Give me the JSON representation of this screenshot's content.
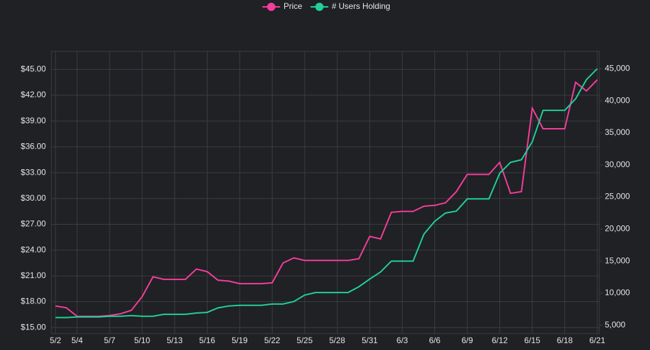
{
  "chart_data": {
    "type": "line",
    "categories": [
      "5/2",
      null,
      "5/4",
      null,
      null,
      "5/7",
      null,
      null,
      "5/10",
      null,
      null,
      "5/13",
      null,
      null,
      "5/16",
      null,
      null,
      "5/19",
      null,
      null,
      "5/22",
      null,
      null,
      "5/25",
      null,
      null,
      "5/28",
      null,
      null,
      "5/31",
      null,
      null,
      "6/3",
      null,
      null,
      "6/6",
      null,
      null,
      "6/9",
      null,
      null,
      "6/12",
      null,
      null,
      "6/15",
      null,
      null,
      "6/18",
      null,
      null,
      "6/21"
    ],
    "series": [
      {
        "name": "Price",
        "color": "#f53d9c",
        "axis": "y",
        "values": [
          17.5,
          17.3,
          16.3,
          16.3,
          16.3,
          16.4,
          16.6,
          17.0,
          18.6,
          20.9,
          20.6,
          20.6,
          20.6,
          21.8,
          21.5,
          20.5,
          20.4,
          20.1,
          20.1,
          20.1,
          20.2,
          22.5,
          23.1,
          22.8,
          22.8,
          22.8,
          22.8,
          22.8,
          23.0,
          25.6,
          25.3,
          28.4,
          28.5,
          28.5,
          29.1,
          29.2,
          29.5,
          30.8,
          32.8,
          32.8,
          32.8,
          34.2,
          30.6,
          30.8,
          40.5,
          38.1,
          38.1,
          38.1,
          43.5,
          42.5,
          43.8
        ]
      },
      {
        "name": "# Users Holding",
        "color": "#1fd19b",
        "axis": "y2",
        "values": [
          6200,
          6200,
          6300,
          6300,
          6300,
          6400,
          6400,
          6500,
          6400,
          6400,
          6700,
          6700,
          6700,
          6900,
          7000,
          7700,
          8000,
          8100,
          8100,
          8100,
          8300,
          8300,
          8700,
          9700,
          10100,
          10100,
          10100,
          10100,
          11000,
          12200,
          13300,
          15000,
          15000,
          15000,
          19200,
          21200,
          22500,
          22800,
          24700,
          24700,
          24700,
          28700,
          30400,
          30800,
          33600,
          38500,
          38500,
          38500,
          40300,
          43300,
          45000
        ]
      }
    ],
    "ylim": [
      14.3,
      47.1
    ],
    "yticks": [
      {
        "value": 15,
        "label": "$15.00"
      },
      {
        "value": 18,
        "label": "$18.00"
      },
      {
        "value": 21,
        "label": "$21.00"
      },
      {
        "value": 24,
        "label": "$24.00"
      },
      {
        "value": 27,
        "label": "$27.00"
      },
      {
        "value": 30,
        "label": "$30.00"
      },
      {
        "value": 33,
        "label": "$33.00"
      },
      {
        "value": 36,
        "label": "$36.00"
      },
      {
        "value": 39,
        "label": "$39.00"
      },
      {
        "value": 42,
        "label": "$42.00"
      },
      {
        "value": 45,
        "label": "$45.00"
      }
    ],
    "y2lim": [
      3700,
      47700
    ],
    "y2ticks": [
      {
        "value": 5000,
        "label": "5,000"
      },
      {
        "value": 10000,
        "label": "10,000"
      },
      {
        "value": 15000,
        "label": "15,000"
      },
      {
        "value": 20000,
        "label": "20,000"
      },
      {
        "value": 25000,
        "label": "25,000"
      },
      {
        "value": 30000,
        "label": "30,000"
      },
      {
        "value": 35000,
        "label": "35,000"
      },
      {
        "value": 40000,
        "label": "40,000"
      },
      {
        "value": 45000,
        "label": "45,000"
      }
    ],
    "grid": true,
    "legend": "top"
  }
}
